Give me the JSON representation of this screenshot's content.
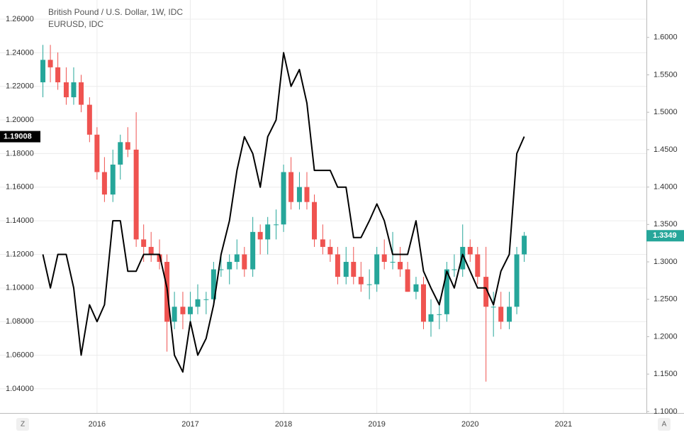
{
  "chart_data": {
    "type": "candlestick",
    "x": [
      2015.42,
      2015.5,
      2015.58,
      2015.67,
      2015.75,
      2015.83,
      2015.92,
      2016.0,
      2016.08,
      2016.17,
      2016.25,
      2016.33,
      2016.42,
      2016.5,
      2016.58,
      2016.67,
      2016.75,
      2016.83,
      2016.92,
      2017.0,
      2017.08,
      2017.17,
      2017.25,
      2017.33,
      2017.42,
      2017.5,
      2017.58,
      2017.67,
      2017.75,
      2017.83,
      2017.92,
      2018.0,
      2018.08,
      2018.17,
      2018.25,
      2018.33,
      2018.42,
      2018.5,
      2018.58,
      2018.67,
      2018.75,
      2018.83,
      2018.92,
      2019.0,
      2019.08,
      2019.17,
      2019.25,
      2019.33,
      2019.42,
      2019.5,
      2019.58,
      2019.67,
      2019.75,
      2019.83,
      2019.92,
      2020.0,
      2020.08,
      2020.17,
      2020.25,
      2020.33,
      2020.42,
      2020.5,
      2020.58
    ],
    "series": [
      {
        "name": "British Pound / U.S. Dollar, 1W, IDC",
        "axis": "y2",
        "up_color": "#26a69a",
        "down_color": "#ef5350",
        "open": [
          1.54,
          1.57,
          1.56,
          1.54,
          1.52,
          1.54,
          1.51,
          1.47,
          1.42,
          1.39,
          1.43,
          1.46,
          1.45,
          1.33,
          1.32,
          1.31,
          1.3,
          1.22,
          1.24,
          1.23,
          1.24,
          1.25,
          1.25,
          1.29,
          1.29,
          1.3,
          1.31,
          1.29,
          1.34,
          1.33,
          1.35,
          1.35,
          1.42,
          1.38,
          1.4,
          1.38,
          1.33,
          1.32,
          1.31,
          1.28,
          1.3,
          1.28,
          1.27,
          1.27,
          1.31,
          1.3,
          1.3,
          1.29,
          1.26,
          1.27,
          1.22,
          1.23,
          1.23,
          1.29,
          1.29,
          1.32,
          1.31,
          1.28,
          1.24,
          1.24,
          1.22,
          1.24,
          1.31
        ],
        "high": [
          1.59,
          1.59,
          1.58,
          1.56,
          1.56,
          1.55,
          1.52,
          1.48,
          1.44,
          1.45,
          1.47,
          1.48,
          1.5,
          1.35,
          1.34,
          1.33,
          1.31,
          1.26,
          1.26,
          1.26,
          1.27,
          1.26,
          1.3,
          1.31,
          1.31,
          1.33,
          1.32,
          1.36,
          1.35,
          1.36,
          1.37,
          1.43,
          1.44,
          1.42,
          1.42,
          1.39,
          1.35,
          1.33,
          1.32,
          1.32,
          1.32,
          1.3,
          1.29,
          1.32,
          1.33,
          1.34,
          1.32,
          1.3,
          1.28,
          1.28,
          1.25,
          1.25,
          1.3,
          1.31,
          1.35,
          1.33,
          1.32,
          1.32,
          1.26,
          1.26,
          1.26,
          1.32,
          1.34
        ],
        "low": [
          1.52,
          1.54,
          1.53,
          1.51,
          1.51,
          1.5,
          1.46,
          1.41,
          1.38,
          1.38,
          1.41,
          1.44,
          1.32,
          1.3,
          1.3,
          1.29,
          1.18,
          1.21,
          1.21,
          1.22,
          1.23,
          1.23,
          1.24,
          1.28,
          1.27,
          1.29,
          1.28,
          1.28,
          1.31,
          1.31,
          1.33,
          1.34,
          1.37,
          1.37,
          1.37,
          1.32,
          1.31,
          1.3,
          1.27,
          1.27,
          1.27,
          1.26,
          1.25,
          1.26,
          1.29,
          1.29,
          1.28,
          1.26,
          1.25,
          1.21,
          1.2,
          1.21,
          1.22,
          1.28,
          1.28,
          1.3,
          1.27,
          1.14,
          1.2,
          1.21,
          1.21,
          1.23,
          1.3
        ],
        "close": [
          1.57,
          1.56,
          1.54,
          1.52,
          1.54,
          1.51,
          1.47,
          1.42,
          1.39,
          1.43,
          1.46,
          1.45,
          1.33,
          1.32,
          1.31,
          1.3,
          1.22,
          1.24,
          1.23,
          1.24,
          1.25,
          1.25,
          1.29,
          1.29,
          1.3,
          1.31,
          1.29,
          1.34,
          1.33,
          1.35,
          1.35,
          1.42,
          1.38,
          1.4,
          1.38,
          1.33,
          1.32,
          1.31,
          1.28,
          1.3,
          1.28,
          1.27,
          1.27,
          1.31,
          1.3,
          1.3,
          1.29,
          1.26,
          1.27,
          1.22,
          1.23,
          1.23,
          1.29,
          1.29,
          1.32,
          1.31,
          1.28,
          1.24,
          1.24,
          1.22,
          1.24,
          1.31,
          1.3349
        ],
        "tag_color": "#26a69a"
      },
      {
        "name": "EURUSD, IDC",
        "type": "line",
        "axis": "y",
        "color": "#000000",
        "values": [
          1.12,
          1.1,
          1.12,
          1.12,
          1.1,
          1.06,
          1.09,
          1.08,
          1.09,
          1.14,
          1.14,
          1.11,
          1.11,
          1.12,
          1.12,
          1.12,
          1.1,
          1.06,
          1.05,
          1.08,
          1.06,
          1.07,
          1.09,
          1.12,
          1.14,
          1.17,
          1.19,
          1.18,
          1.16,
          1.19,
          1.2,
          1.24,
          1.22,
          1.23,
          1.21,
          1.17,
          1.17,
          1.17,
          1.16,
          1.16,
          1.13,
          1.13,
          1.14,
          1.15,
          1.14,
          1.12,
          1.12,
          1.12,
          1.14,
          1.11,
          1.1,
          1.09,
          1.11,
          1.1,
          1.12,
          1.11,
          1.1,
          1.1,
          1.09,
          1.11,
          1.12,
          1.18,
          1.19008
        ]
      }
    ],
    "xlim": [
      2014.96,
      2021.89
    ],
    "xticks": [
      2016,
      2017,
      2018,
      2019,
      2020,
      2021
    ],
    "ylim": [
      1.0256,
      1.2714
    ],
    "yticks": [
      {
        "value": 1.04,
        "label": "1.04000"
      },
      {
        "value": 1.06,
        "label": "1.06000"
      },
      {
        "value": 1.08,
        "label": "1.08000"
      },
      {
        "value": 1.1,
        "label": "1.10000"
      },
      {
        "value": 1.12,
        "label": "1.12000"
      },
      {
        "value": 1.14,
        "label": "1.14000"
      },
      {
        "value": 1.16,
        "label": "1.16000"
      },
      {
        "value": 1.18,
        "label": "1.18000"
      },
      {
        "value": 1.2,
        "label": "1.20000"
      },
      {
        "value": 1.22,
        "label": "1.22000"
      },
      {
        "value": 1.24,
        "label": "1.24000"
      },
      {
        "value": 1.26,
        "label": "1.26000"
      }
    ],
    "y2lim": [
      1.098,
      1.65
    ],
    "y2ticks": [
      {
        "value": 1.1,
        "label": "1.1000"
      },
      {
        "value": 1.15,
        "label": "1.1500"
      },
      {
        "value": 1.2,
        "label": "1.2000"
      },
      {
        "value": 1.25,
        "label": "1.2500"
      },
      {
        "value": 1.3,
        "label": "1.3000"
      },
      {
        "value": 1.35,
        "label": "1.3500"
      },
      {
        "value": 1.4,
        "label": "1.4000"
      },
      {
        "value": 1.45,
        "label": "1.4500"
      },
      {
        "value": 1.5,
        "label": "1.5000"
      },
      {
        "value": 1.55,
        "label": "1.5500"
      },
      {
        "value": 1.6,
        "label": "1.6000"
      }
    ],
    "grid": true,
    "buttons": [
      "Z",
      "A"
    ]
  }
}
